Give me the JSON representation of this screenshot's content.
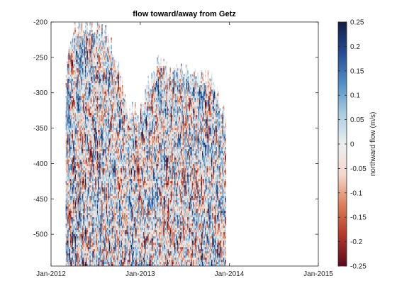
{
  "chart_data": {
    "type": "heatmap",
    "title": "flow toward/away from Getz",
    "xlabel": "",
    "ylabel": "",
    "x_ticks": [
      "Jan-2012",
      "Jan-2013",
      "Jan-2014",
      "Jan-2015"
    ],
    "x_tick_values": [
      "2012-01-01",
      "2013-01-01",
      "2014-01-01",
      "2015-01-01"
    ],
    "xlim": [
      "2012-01-01",
      "2015-01-01"
    ],
    "y_ticks": [
      -200,
      -250,
      -300,
      -350,
      -400,
      -450,
      -500
    ],
    "ylim": [
      -545,
      -200
    ],
    "grid": false,
    "data_range": {
      "x": [
        "2012-03-01",
        "2013-12-15"
      ],
      "y_bottom": -545,
      "y_top_envelope": [
        {
          "x": "2012-03-01",
          "y": -260
        },
        {
          "x": "2012-04-01",
          "y": -210
        },
        {
          "x": "2012-05-15",
          "y": -200
        },
        {
          "x": "2012-07-01",
          "y": -205
        },
        {
          "x": "2012-08-15",
          "y": -220
        },
        {
          "x": "2012-10-01",
          "y": -260
        },
        {
          "x": "2012-11-01",
          "y": -320
        },
        {
          "x": "2013-01-01",
          "y": -330
        },
        {
          "x": "2013-02-01",
          "y": -290
        },
        {
          "x": "2013-03-15",
          "y": -260
        },
        {
          "x": "2013-05-01",
          "y": -275
        },
        {
          "x": "2013-06-15",
          "y": -265
        },
        {
          "x": "2013-08-01",
          "y": -280
        },
        {
          "x": "2013-09-15",
          "y": -270
        },
        {
          "x": "2013-11-01",
          "y": -290
        },
        {
          "x": "2013-12-15",
          "y": -340
        }
      ]
    },
    "colorbar": {
      "label": "northward flow (m/s)",
      "range": [
        -0.25,
        0.25
      ],
      "ticks": [
        "0.25",
        "0.2",
        "0.15",
        "0.1",
        "0.05",
        "0",
        "-0.05",
        "-0.1",
        "-0.15",
        "-0.2",
        "-0.25"
      ],
      "colormap_stops": [
        "#5a0a1e",
        "#b2372a",
        "#dd7f58",
        "#f4d8cd",
        "#eceff1",
        "#a9cce0",
        "#4f8fc4",
        "#244a94",
        "#141d45"
      ]
    }
  }
}
